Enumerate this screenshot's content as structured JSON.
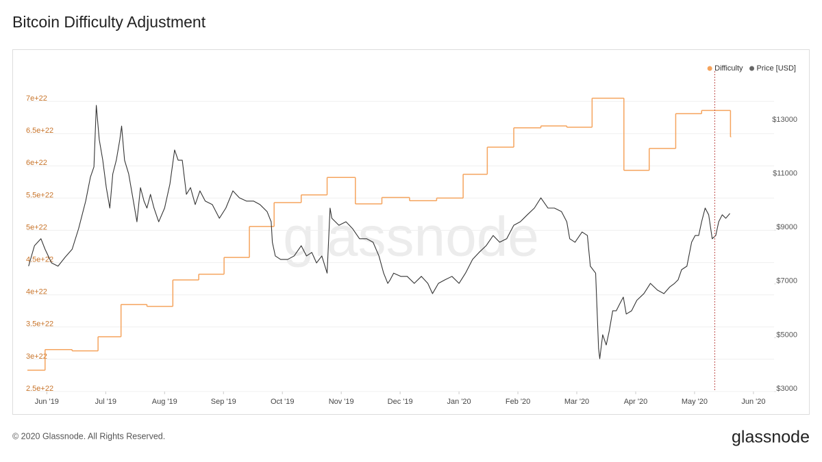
{
  "chart_data": {
    "type": "line",
    "title": "Bitcoin Difficulty Adjustment",
    "watermark": "glassnode",
    "legend": "top-right",
    "grid": true,
    "xlim": [
      -0.33,
      12.35
    ],
    "xticks": [
      {
        "value": 0,
        "label": "Jun '19"
      },
      {
        "value": 1,
        "label": "Jul '19"
      },
      {
        "value": 2,
        "label": "Aug '19"
      },
      {
        "value": 3,
        "label": "Sep '19"
      },
      {
        "value": 4,
        "label": "Oct '19"
      },
      {
        "value": 5,
        "label": "Nov '19"
      },
      {
        "value": 6,
        "label": "Dec '19"
      },
      {
        "value": 7,
        "label": "Jan '20"
      },
      {
        "value": 8,
        "label": "Feb '20"
      },
      {
        "value": 9,
        "label": "Mar '20"
      },
      {
        "value": 10,
        "label": "Apr '20"
      },
      {
        "value": 11,
        "label": "May '20"
      },
      {
        "value": 12,
        "label": "Jun '20"
      }
    ],
    "ylim": [
      2.5e+22,
      7.49e+22
    ],
    "yticks": [
      {
        "value": 2.5e+22,
        "label": "2.5e+22"
      },
      {
        "value": 3e+22,
        "label": "3e+22"
      },
      {
        "value": 3.5e+22,
        "label": "3.5e+22"
      },
      {
        "value": 4e+22,
        "label": "4e+22"
      },
      {
        "value": 4.5e+22,
        "label": "4.5e+22"
      },
      {
        "value": 5e+22,
        "label": "5e+22"
      },
      {
        "value": 5.5e+22,
        "label": "5.5e+22"
      },
      {
        "value": 6e+22,
        "label": "6e+22"
      },
      {
        "value": 6.5e+22,
        "label": "6.5e+22"
      },
      {
        "value": 7e+22,
        "label": "7e+22"
      }
    ],
    "y2lim": [
      3000,
      14960
    ],
    "y2ticks": [
      {
        "value": 3000,
        "label": "$3000"
      },
      {
        "value": 5000,
        "label": "$5000"
      },
      {
        "value": 7000,
        "label": "$7000"
      },
      {
        "value": 9000,
        "label": "$9000"
      },
      {
        "value": 11000,
        "label": "$11000"
      },
      {
        "value": 13000,
        "label": "$13000"
      }
    ],
    "series": [
      {
        "name": "Difficulty",
        "color": "#f5a35c",
        "step": "after",
        "x": [
          -0.33,
          -0.03,
          0.43,
          0.87,
          1.26,
          1.7,
          2.14,
          2.58,
          3.01,
          3.44,
          3.86,
          4.32,
          4.76,
          5.24,
          5.69,
          6.16,
          6.62,
          7.07,
          7.48,
          7.93,
          8.39,
          8.83,
          9.26,
          9.8,
          10.23,
          10.68,
          11.12,
          11.61
        ],
        "values": [
          2.83e+22,
          3.15e+22,
          3.13e+22,
          3.35e+22,
          3.85e+22,
          3.82e+22,
          4.23e+22,
          4.32e+22,
          4.58e+22,
          5.06e+22,
          5.43e+22,
          5.55e+22,
          5.82e+22,
          5.41e+22,
          5.51e+22,
          5.46e+22,
          5.5e+22,
          5.87e+22,
          6.29e+22,
          6.59e+22,
          6.62e+22,
          6.6e+22,
          7.05e+22,
          5.93e+22,
          6.27e+22,
          6.81e+22,
          6.86e+22,
          6.45e+22
        ]
      },
      {
        "name": "Price [USD]",
        "color": "#666666",
        "axis": "y2",
        "x": [
          -0.31,
          -0.21,
          -0.1,
          -0.03,
          0.08,
          0.19,
          0.31,
          0.43,
          0.54,
          0.66,
          0.74,
          0.8,
          0.84,
          0.89,
          0.95,
          1.01,
          1.07,
          1.12,
          1.18,
          1.24,
          1.27,
          1.32,
          1.39,
          1.47,
          1.53,
          1.59,
          1.65,
          1.7,
          1.76,
          1.82,
          1.9,
          2.0,
          2.09,
          2.17,
          2.23,
          2.3,
          2.37,
          2.44,
          2.52,
          2.6,
          2.69,
          2.81,
          2.93,
          3.04,
          3.16,
          3.27,
          3.39,
          3.51,
          3.62,
          3.74,
          3.81,
          3.83,
          3.88,
          3.97,
          4.09,
          4.2,
          4.32,
          4.41,
          4.5,
          4.58,
          4.67,
          4.76,
          4.81,
          4.84,
          4.96,
          5.08,
          5.19,
          5.31,
          5.43,
          5.54,
          5.64,
          5.72,
          5.79,
          5.83,
          5.89,
          6.01,
          6.12,
          6.24,
          6.36,
          6.47,
          6.55,
          6.65,
          6.76,
          6.88,
          7.0,
          7.11,
          7.23,
          7.34,
          7.46,
          7.58,
          7.69,
          7.81,
          7.93,
          8.04,
          8.16,
          8.28,
          8.39,
          8.51,
          8.62,
          8.74,
          8.83,
          8.88,
          8.97,
          9.09,
          9.18,
          9.23,
          9.32,
          9.37,
          9.39,
          9.44,
          9.5,
          9.55,
          9.61,
          9.67,
          9.73,
          9.79,
          9.84,
          9.93,
          10.02,
          10.14,
          10.25,
          10.37,
          10.48,
          10.58,
          10.66,
          10.72,
          10.78,
          10.87,
          10.95,
          11.01,
          11.07,
          11.12,
          11.18,
          11.24,
          11.3,
          11.36,
          11.41,
          11.47,
          11.53,
          11.6
        ],
        "values": [
          7660,
          8420,
          8680,
          8290,
          7780,
          7660,
          7990,
          8290,
          9060,
          10080,
          10970,
          11350,
          13640,
          12370,
          11600,
          10580,
          9820,
          11090,
          11600,
          12370,
          12870,
          11600,
          11090,
          10080,
          9310,
          10580,
          10080,
          9820,
          10330,
          9820,
          9310,
          9820,
          10710,
          11980,
          11600,
          11600,
          10330,
          10580,
          9950,
          10460,
          10080,
          9950,
          9440,
          9820,
          10460,
          10200,
          10080,
          10080,
          9950,
          9690,
          9310,
          8550,
          8040,
          7910,
          7910,
          8040,
          8420,
          8040,
          8170,
          7780,
          8040,
          7400,
          9820,
          9440,
          9180,
          9310,
          9060,
          8680,
          8680,
          8550,
          8040,
          7400,
          7020,
          7150,
          7400,
          7280,
          7280,
          7020,
          7280,
          7020,
          6640,
          7020,
          7150,
          7280,
          7020,
          7400,
          7910,
          8170,
          8420,
          8800,
          8550,
          8680,
          9180,
          9310,
          9570,
          9820,
          10200,
          9820,
          9820,
          9690,
          9310,
          8680,
          8550,
          8930,
          8800,
          7660,
          7400,
          4600,
          4220,
          5110,
          4730,
          5240,
          6000,
          6000,
          6260,
          6510,
          5880,
          6000,
          6390,
          6640,
          7020,
          6770,
          6640,
          6890,
          7020,
          7150,
          7530,
          7660,
          8550,
          8800,
          8800,
          9310,
          9820,
          9570,
          8680,
          8800,
          9310,
          9570,
          9440,
          9620
        ]
      }
    ]
  },
  "footer": {
    "copyright": "© 2020 Glassnode. All Rights Reserved.",
    "logo": "glassnode"
  }
}
